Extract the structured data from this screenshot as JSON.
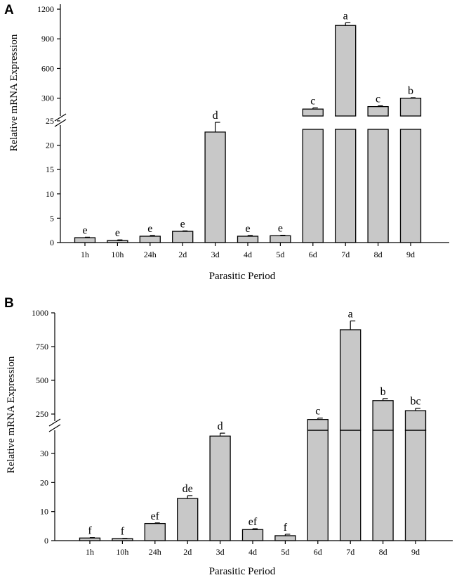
{
  "chart_data": [
    {
      "panel": "A",
      "type": "bar",
      "ylabel": "Relative mRNA Expression",
      "xlabel": "Parasitic Period",
      "categories": [
        "1h",
        "10h",
        "24h",
        "2d",
        "3d",
        "4d",
        "5d",
        "6d",
        "7d",
        "8d",
        "9d"
      ],
      "values": [
        1.0,
        0.4,
        1.3,
        2.3,
        22.7,
        1.3,
        1.4,
        190,
        1035,
        215,
        300
      ],
      "errors": [
        0.1,
        0.15,
        0.15,
        0.1,
        2.0,
        0.15,
        0.1,
        12,
        28,
        8,
        5
      ],
      "letters": [
        "e",
        "e",
        "e",
        "e",
        "d",
        "e",
        "e",
        "c",
        "a",
        "c",
        "b"
      ],
      "lower_axis": {
        "ylim": [
          0,
          26
        ],
        "ticks": [
          0,
          5,
          10,
          15,
          20,
          25
        ]
      },
      "upper_axis": {
        "ylim": [
          120,
          1250
        ],
        "ticks": [
          300,
          600,
          900,
          1200
        ]
      }
    },
    {
      "panel": "B",
      "type": "bar",
      "ylabel": "Relative mRNA Expression",
      "xlabel": "Parasitic Period",
      "categories": [
        "1h",
        "10h",
        "24h",
        "2d",
        "3d",
        "4d",
        "5d",
        "6d",
        "7d",
        "8d",
        "9d"
      ],
      "values": [
        0.9,
        0.7,
        5.9,
        14.5,
        36.0,
        3.8,
        1.7,
        210,
        875,
        350,
        275
      ],
      "errors": [
        0.15,
        0.1,
        0.2,
        1.0,
        1.0,
        0.3,
        0.5,
        10,
        65,
        15,
        18
      ],
      "letters": [
        "f",
        "f",
        "ef",
        "de",
        "d",
        "ef",
        "f",
        "c",
        "a",
        "b",
        "bc"
      ],
      "lower_axis": {
        "ylim": [
          0,
          38
        ],
        "ticks": [
          0,
          10,
          20,
          30
        ]
      },
      "upper_axis": {
        "ylim": [
          130,
          1000
        ],
        "ticks": [
          250,
          500,
          750,
          1000
        ]
      }
    }
  ]
}
